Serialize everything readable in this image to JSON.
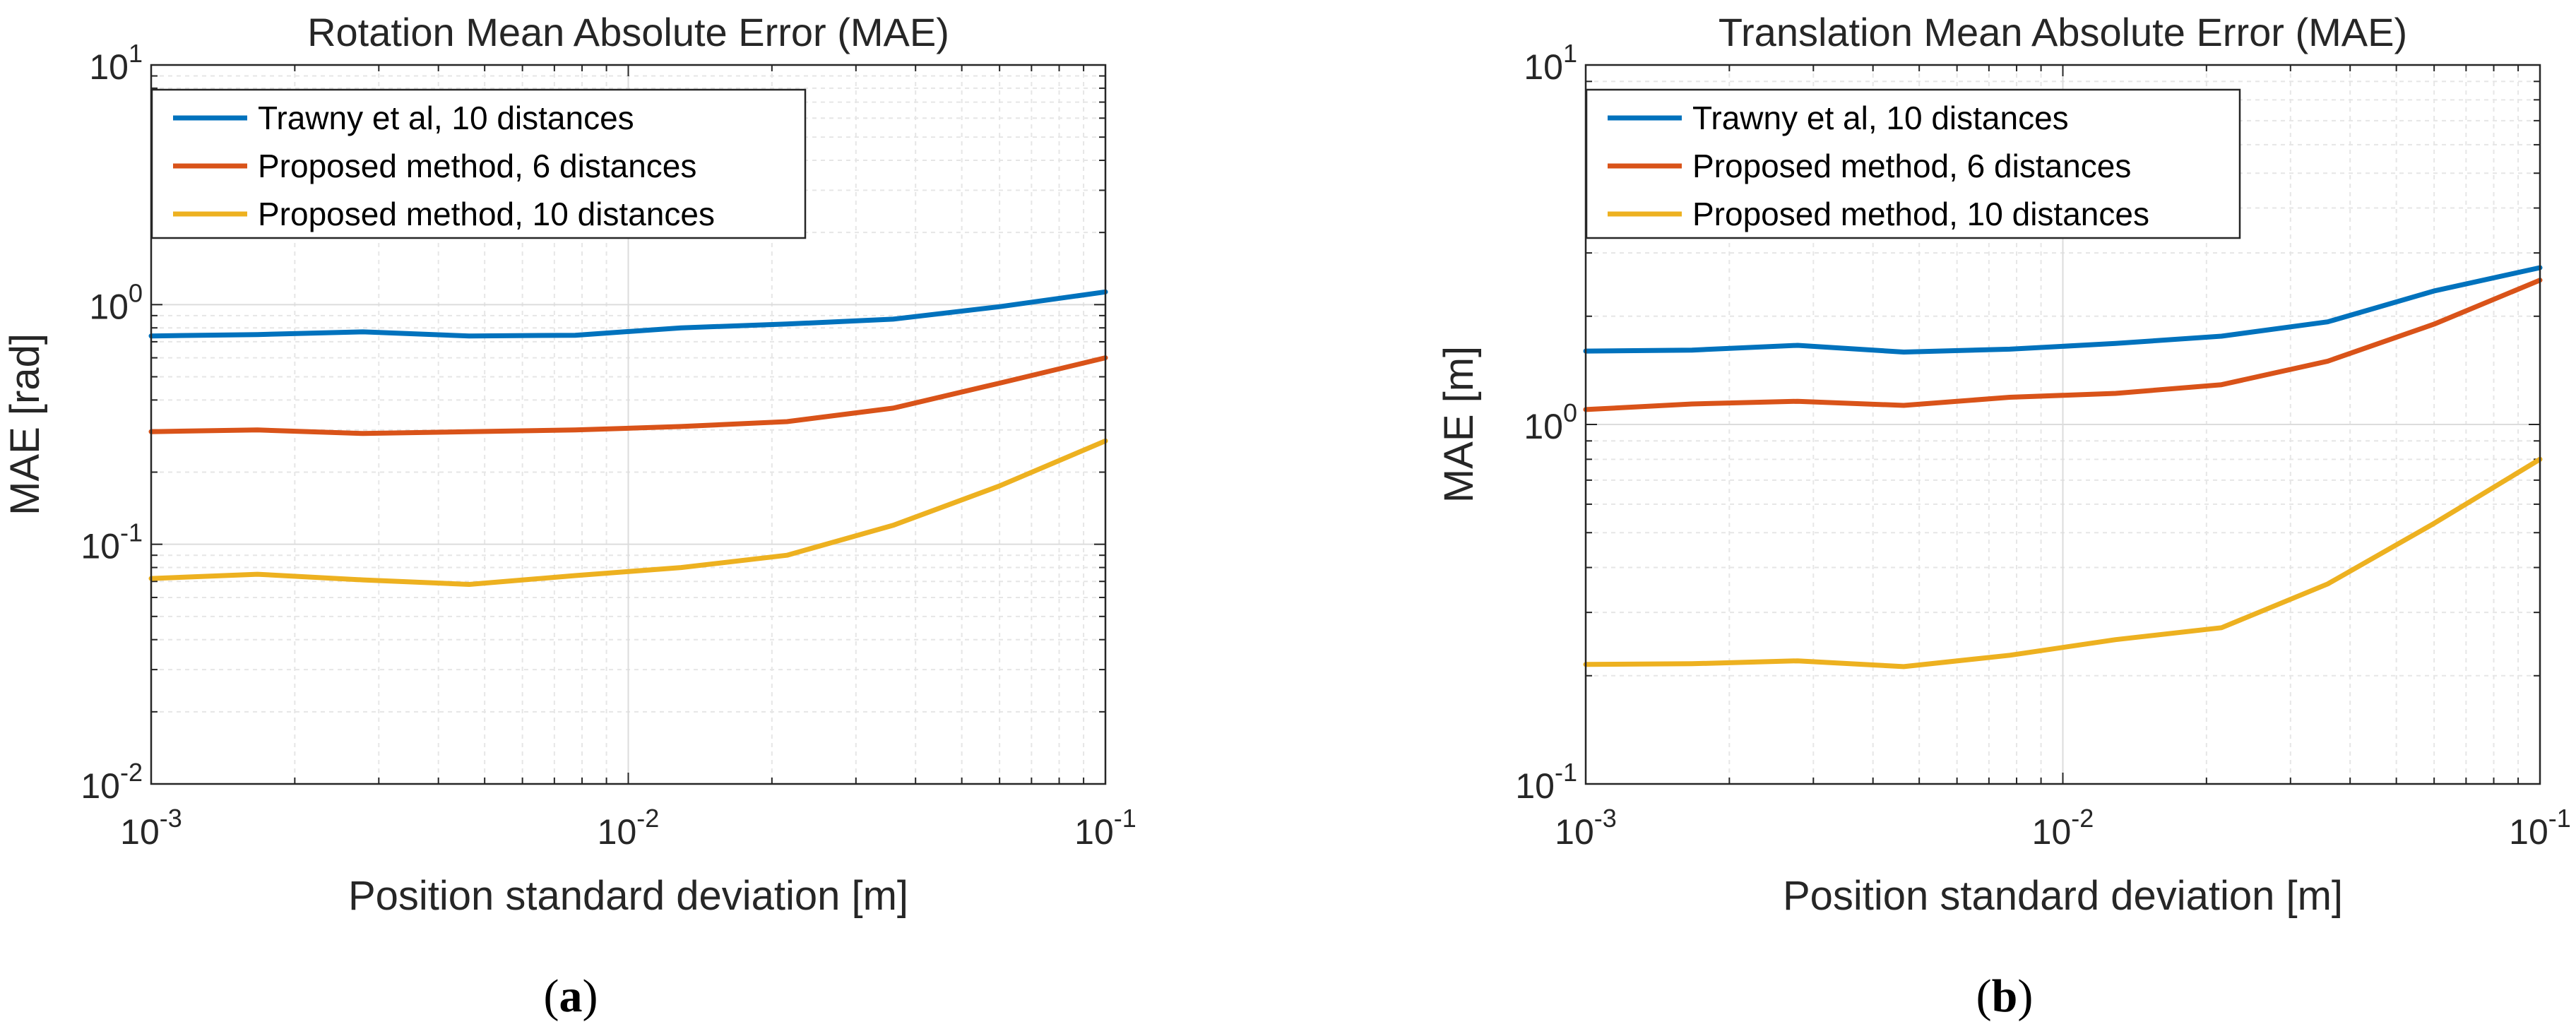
{
  "chart_data": [
    {
      "type": "line",
      "id": "a",
      "title": "Rotation Mean Absolute Error (MAE)",
      "xlabel": "Position standard deviation [m]",
      "ylabel": "MAE [rad]",
      "xscale": "log",
      "yscale": "log",
      "xlim": [
        0.001,
        0.1
      ],
      "ylim": [
        0.01,
        10
      ],
      "xticks": [
        {
          "base": "10",
          "exp": "-3"
        },
        {
          "base": "10",
          "exp": "-2"
        },
        {
          "base": "10",
          "exp": "-1"
        }
      ],
      "yticks": [
        {
          "base": "10",
          "exp": "-2"
        },
        {
          "base": "10",
          "exp": "-1"
        },
        {
          "base": "10",
          "exp": "0"
        },
        {
          "base": "10",
          "exp": "1"
        }
      ],
      "grid": true,
      "legend_position": "top-left",
      "panel_label": "a",
      "x": [
        0.001,
        0.00167,
        0.00278,
        0.00464,
        0.00774,
        0.0129,
        0.0215,
        0.0359,
        0.0599,
        0.1
      ],
      "series": [
        {
          "name": "Trawny et al, 10 distances",
          "color": "#0072BD",
          "values": [
            0.74,
            0.75,
            0.77,
            0.74,
            0.745,
            0.8,
            0.83,
            0.87,
            0.98,
            1.13
          ]
        },
        {
          "name": "Proposed method, 6 distances",
          "color": "#D95319",
          "values": [
            0.295,
            0.3,
            0.29,
            0.295,
            0.3,
            0.31,
            0.325,
            0.37,
            0.47,
            0.6
          ]
        },
        {
          "name": "Proposed method, 10 distances",
          "color": "#EDB120",
          "values": [
            0.072,
            0.075,
            0.071,
            0.068,
            0.074,
            0.08,
            0.09,
            0.12,
            0.175,
            0.27
          ]
        }
      ]
    },
    {
      "type": "line",
      "id": "b",
      "title": "Translation Mean Absolute Error (MAE)",
      "xlabel": "Position standard deviation [m]",
      "ylabel": "MAE [m]",
      "xscale": "log",
      "yscale": "log",
      "xlim": [
        0.001,
        0.1
      ],
      "ylim": [
        0.1,
        10
      ],
      "xticks": [
        {
          "base": "10",
          "exp": "-3"
        },
        {
          "base": "10",
          "exp": "-2"
        },
        {
          "base": "10",
          "exp": "-1"
        }
      ],
      "yticks": [
        {
          "base": "10",
          "exp": "-1"
        },
        {
          "base": "10",
          "exp": "0"
        },
        {
          "base": "10",
          "exp": "1"
        }
      ],
      "grid": true,
      "legend_position": "top-left",
      "panel_label": "b",
      "x": [
        0.001,
        0.00167,
        0.00278,
        0.00464,
        0.00774,
        0.0129,
        0.0215,
        0.0359,
        0.0599,
        0.1
      ],
      "series": [
        {
          "name": "Trawny et al, 10 distances",
          "color": "#0072BD",
          "values": [
            1.6,
            1.61,
            1.66,
            1.59,
            1.62,
            1.68,
            1.76,
            1.93,
            2.35,
            2.73
          ]
        },
        {
          "name": "Proposed method, 6 distances",
          "color": "#D95319",
          "values": [
            1.1,
            1.14,
            1.16,
            1.13,
            1.19,
            1.22,
            1.29,
            1.5,
            1.9,
            2.52
          ]
        },
        {
          "name": "Proposed method, 10 distances",
          "color": "#EDB120",
          "values": [
            0.215,
            0.216,
            0.22,
            0.212,
            0.228,
            0.252,
            0.272,
            0.36,
            0.53,
            0.8
          ]
        }
      ]
    }
  ]
}
